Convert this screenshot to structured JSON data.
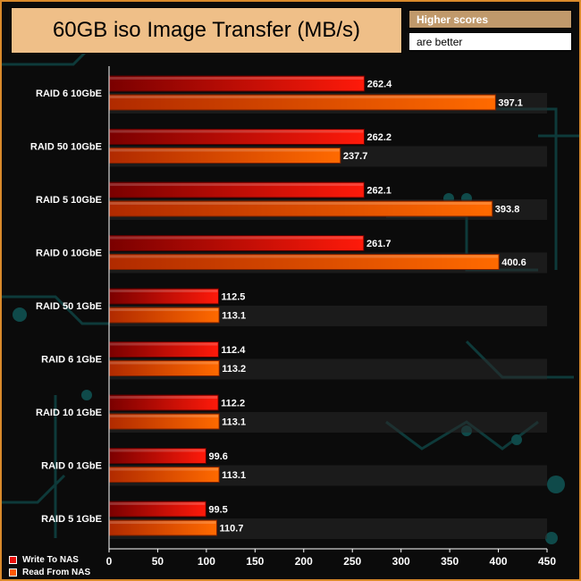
{
  "title": "60GB iso Image Transfer (MB/s)",
  "note": {
    "line1": "Higher scores",
    "line2": "are better"
  },
  "colors": {
    "write": "#e8100b",
    "read": "#ff5a00",
    "frame": "#d98a2b",
    "title_bg": "#efbf88"
  },
  "chart_data": {
    "type": "bar",
    "orientation": "horizontal",
    "categories": [
      "RAID 6 10GbE",
      "RAID 50 10GbE",
      "RAID 5 10GbE",
      "RAID 0 10GbE",
      "RAID 50 1GbE",
      "RAID 6 1GbE",
      "RAID 10 1GbE",
      "RAID 0 1GbE",
      "RAID 5 1GbE"
    ],
    "series": [
      {
        "name": "Write To NAS",
        "values": [
          262.4,
          262.2,
          262.1,
          261.7,
          112.5,
          112.4,
          112.2,
          99.6,
          99.5
        ]
      },
      {
        "name": "Read From NAS",
        "values": [
          397.1,
          237.7,
          393.8,
          400.6,
          113.1,
          113.2,
          113.1,
          113.1,
          110.7
        ]
      }
    ],
    "xlim": [
      0,
      450
    ],
    "xticks": [
      0,
      50,
      100,
      150,
      200,
      250,
      300,
      350,
      400,
      450
    ],
    "grid": false,
    "legend_position": "bottom-left"
  }
}
